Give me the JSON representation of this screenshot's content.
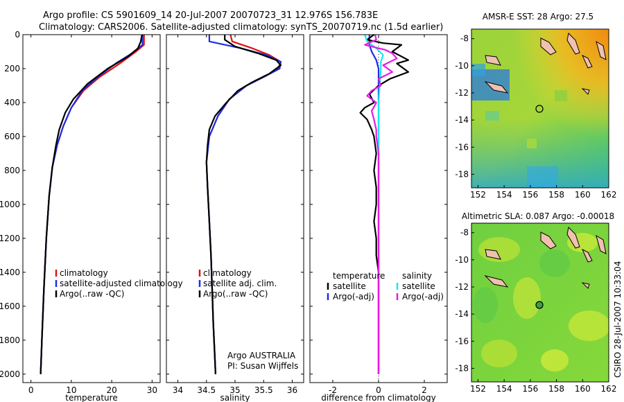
{
  "header": {
    "line1": "Argo profile: CS 5901609_14 20-Jul-2007 20070723_31 12.976S 156.783E",
    "line2": "Climatology: CARS2006. Satellite-adjusted climatology: synTS_20070719.nc (1.5d earlier)"
  },
  "side_label": "CSIRO 28-Jul-2007 10:33:04",
  "colors": {
    "red": "#e01010",
    "blue": "#1a2ee6",
    "black": "#000000",
    "cyan": "#19e6f0",
    "magenta": "#e619e6"
  },
  "chart_data": [
    {
      "type": "line",
      "xlabel": "temperature",
      "xlim": [
        -2,
        32
      ],
      "ylim": [
        2050,
        0
      ],
      "xticks": [
        0,
        10,
        20,
        30
      ],
      "yticks": [
        0,
        200,
        400,
        600,
        800,
        1000,
        1200,
        1400,
        1600,
        1800,
        2000
      ],
      "legend": [
        "climatology",
        "satellite-adjusted climatology",
        "Argo(..raw -QC)"
      ],
      "series": [
        {
          "name": "climatology",
          "color": "red",
          "points": [
            [
              28,
              0
            ],
            [
              28,
              60
            ],
            [
              26,
              100
            ],
            [
              22,
              170
            ],
            [
              17,
              250
            ],
            [
              13,
              330
            ],
            [
              10,
              430
            ],
            [
              8,
              540
            ],
            [
              6.5,
              650
            ],
            [
              5.3,
              780
            ],
            [
              4.5,
              950
            ],
            [
              3.8,
              1200
            ],
            [
              3.2,
              1500
            ],
            [
              2.7,
              1800
            ],
            [
              2.4,
              2000
            ]
          ]
        },
        {
          "name": "satellite-adjusted climatology",
          "color": "blue",
          "points": [
            [
              27.6,
              0
            ],
            [
              27.6,
              60
            ],
            [
              25,
              110
            ],
            [
              21,
              170
            ],
            [
              16.5,
              250
            ],
            [
              12.7,
              330
            ],
            [
              10,
              430
            ],
            [
              8,
              540
            ],
            [
              6.5,
              650
            ],
            [
              5.3,
              780
            ],
            [
              4.5,
              950
            ],
            [
              3.8,
              1200
            ],
            [
              3.2,
              1500
            ],
            [
              2.7,
              1800
            ],
            [
              2.4,
              2000
            ]
          ]
        },
        {
          "name": "Argo(..raw -QC)",
          "color": "black",
          "points": [
            [
              27.5,
              0
            ],
            [
              27.2,
              40
            ],
            [
              26.5,
              80
            ],
            [
              24,
              130
            ],
            [
              19,
              200
            ],
            [
              14,
              290
            ],
            [
              10.5,
              380
            ],
            [
              8.5,
              460
            ],
            [
              7,
              560
            ],
            [
              6.2,
              650
            ],
            [
              5.3,
              780
            ],
            [
              4.5,
              950
            ],
            [
              3.8,
              1200
            ],
            [
              3.2,
              1500
            ],
            [
              2.7,
              1800
            ],
            [
              2.4,
              2000
            ]
          ]
        }
      ]
    },
    {
      "type": "line",
      "xlabel": "salinity",
      "xlim": [
        33.8,
        36.2
      ],
      "ylim": [
        2050,
        0
      ],
      "xticks": [
        34,
        34.5,
        35,
        35.5,
        36
      ],
      "legend": [
        "climatology",
        "satellite adj. clim.",
        "Argo(..raw -QC)"
      ],
      "annotation": [
        "Argo AUSTRALIA",
        "PI: Susan Wijffels"
      ],
      "series": [
        {
          "name": "climatology",
          "color": "red",
          "points": [
            [
              34.92,
              0
            ],
            [
              34.95,
              40
            ],
            [
              35.3,
              80
            ],
            [
              35.6,
              120
            ],
            [
              35.8,
              160
            ],
            [
              35.75,
              200
            ],
            [
              35.5,
              250
            ],
            [
              35.2,
              300
            ],
            [
              34.9,
              380
            ],
            [
              34.7,
              480
            ],
            [
              34.55,
              600
            ],
            [
              34.5,
              750
            ],
            [
              34.52,
              900
            ],
            [
              34.55,
              1100
            ],
            [
              34.58,
              1300
            ],
            [
              34.6,
              1500
            ],
            [
              34.62,
              1700
            ],
            [
              34.64,
              1850
            ],
            [
              34.66,
              2000
            ]
          ]
        },
        {
          "name": "satellite adj. clim.",
          "color": "blue",
          "points": [
            [
              34.55,
              0
            ],
            [
              34.55,
              40
            ],
            [
              35.1,
              80
            ],
            [
              35.55,
              120
            ],
            [
              35.8,
              160
            ],
            [
              35.78,
              200
            ],
            [
              35.5,
              250
            ],
            [
              35.2,
              300
            ],
            [
              34.9,
              380
            ],
            [
              34.7,
              480
            ],
            [
              34.55,
              600
            ],
            [
              34.5,
              750
            ],
            [
              34.52,
              900
            ],
            [
              34.55,
              1100
            ],
            [
              34.58,
              1300
            ],
            [
              34.6,
              1500
            ],
            [
              34.62,
              1700
            ],
            [
              34.64,
              1850
            ],
            [
              34.66,
              2000
            ]
          ]
        },
        {
          "name": "Argo(..raw -QC)",
          "color": "black",
          "points": [
            [
              34.82,
              0
            ],
            [
              34.82,
              30
            ],
            [
              35.0,
              70
            ],
            [
              35.4,
              110
            ],
            [
              35.72,
              150
            ],
            [
              35.8,
              180
            ],
            [
              35.6,
              230
            ],
            [
              35.3,
              280
            ],
            [
              35.05,
              330
            ],
            [
              34.85,
              400
            ],
            [
              34.65,
              480
            ],
            [
              34.55,
              560
            ],
            [
              34.52,
              650
            ],
            [
              34.5,
              750
            ],
            [
              34.52,
              900
            ],
            [
              34.55,
              1100
            ],
            [
              34.58,
              1300
            ],
            [
              34.6,
              1500
            ],
            [
              34.62,
              1700
            ],
            [
              34.64,
              1850
            ],
            [
              34.66,
              2000
            ]
          ]
        }
      ]
    },
    {
      "type": "line",
      "xlabel": "difference from climatology",
      "xlim": [
        -3,
        3
      ],
      "ylim": [
        2050,
        0
      ],
      "xticks": [
        -2,
        0,
        2
      ],
      "legend_groups": [
        {
          "title": "temperature",
          "items": [
            "satellite",
            "Argo(-adj)"
          ]
        },
        {
          "title": "salinity",
          "items": [
            "satellite",
            "Argo(-adj)"
          ]
        }
      ],
      "series": [
        {
          "name": "temperature satellite",
          "color": "blue",
          "points": [
            [
              -0.4,
              0
            ],
            [
              -0.4,
              60
            ],
            [
              -0.3,
              100
            ],
            [
              -0.1,
              150
            ],
            [
              0,
              200
            ],
            [
              0,
              400
            ],
            [
              0,
              2000
            ]
          ]
        },
        {
          "name": "temperature Argo(-adj)",
          "color": "black",
          "points": [
            [
              -0.2,
              0
            ],
            [
              -0.5,
              30
            ],
            [
              0.2,
              50
            ],
            [
              1,
              60
            ],
            [
              0.6,
              100
            ],
            [
              1.3,
              150
            ],
            [
              0.8,
              170
            ],
            [
              1.3,
              220
            ],
            [
              0.5,
              260
            ],
            [
              0,
              300
            ],
            [
              -0.4,
              350
            ],
            [
              -0.2,
              400
            ],
            [
              -0.6,
              430
            ],
            [
              -0.8,
              460
            ],
            [
              -0.5,
              500
            ],
            [
              -0.3,
              560
            ],
            [
              -0.2,
              600
            ],
            [
              -0.1,
              700
            ],
            [
              -0.2,
              800
            ],
            [
              -0.1,
              900
            ],
            [
              -0.1,
              1000
            ],
            [
              -0.2,
              1100
            ],
            [
              -0.1,
              1200
            ],
            [
              -0.1,
              1300
            ],
            [
              0,
              1400
            ],
            [
              0,
              2000
            ]
          ]
        },
        {
          "name": "salinity satellite",
          "color": "cyan",
          "points": [
            [
              -0.6,
              0
            ],
            [
              -0.5,
              40
            ],
            [
              -0.1,
              80
            ],
            [
              0.2,
              120
            ],
            [
              0.1,
              160
            ],
            [
              0.1,
              200
            ],
            [
              0.05,
              300
            ],
            [
              0,
              400
            ],
            [
              0,
              2000
            ]
          ]
        },
        {
          "name": "salinity Argo(-adj)",
          "color": "magenta",
          "points": [
            [
              -0.15,
              0
            ],
            [
              -0.1,
              30
            ],
            [
              -0.6,
              60
            ],
            [
              0.3,
              90
            ],
            [
              0.6,
              110
            ],
            [
              0.8,
              140
            ],
            [
              0.2,
              180
            ],
            [
              0.6,
              220
            ],
            [
              0,
              260
            ],
            [
              0.1,
              300
            ],
            [
              -0.3,
              330
            ],
            [
              -0.5,
              360
            ],
            [
              -0.1,
              400
            ],
            [
              -0.3,
              450
            ],
            [
              -0.2,
              500
            ],
            [
              -0.1,
              560
            ],
            [
              -0.1,
              600
            ],
            [
              0,
              700
            ],
            [
              0,
              2000
            ]
          ]
        }
      ]
    },
    {
      "type": "heatmap",
      "title": "AMSR-E SST: 28 Argo: 27.5",
      "xlim": [
        151.5,
        162
      ],
      "ylim": [
        -19,
        -7.3
      ],
      "xticks": [
        152,
        154,
        156,
        158,
        160,
        162
      ],
      "yticks": [
        -8,
        -10,
        -12,
        -14,
        -16,
        -18
      ],
      "marker": [
        156.783,
        -12.976
      ]
    },
    {
      "type": "heatmap",
      "title": "Altimetric SLA: 0.087 Argo: -0.00018",
      "xlim": [
        151.5,
        162
      ],
      "ylim": [
        -19,
        -7.3
      ],
      "xticks": [
        152,
        154,
        156,
        158,
        160,
        162
      ],
      "yticks": [
        -8,
        -10,
        -12,
        -14,
        -16,
        -18
      ],
      "marker": [
        156.783,
        -12.976
      ]
    }
  ]
}
